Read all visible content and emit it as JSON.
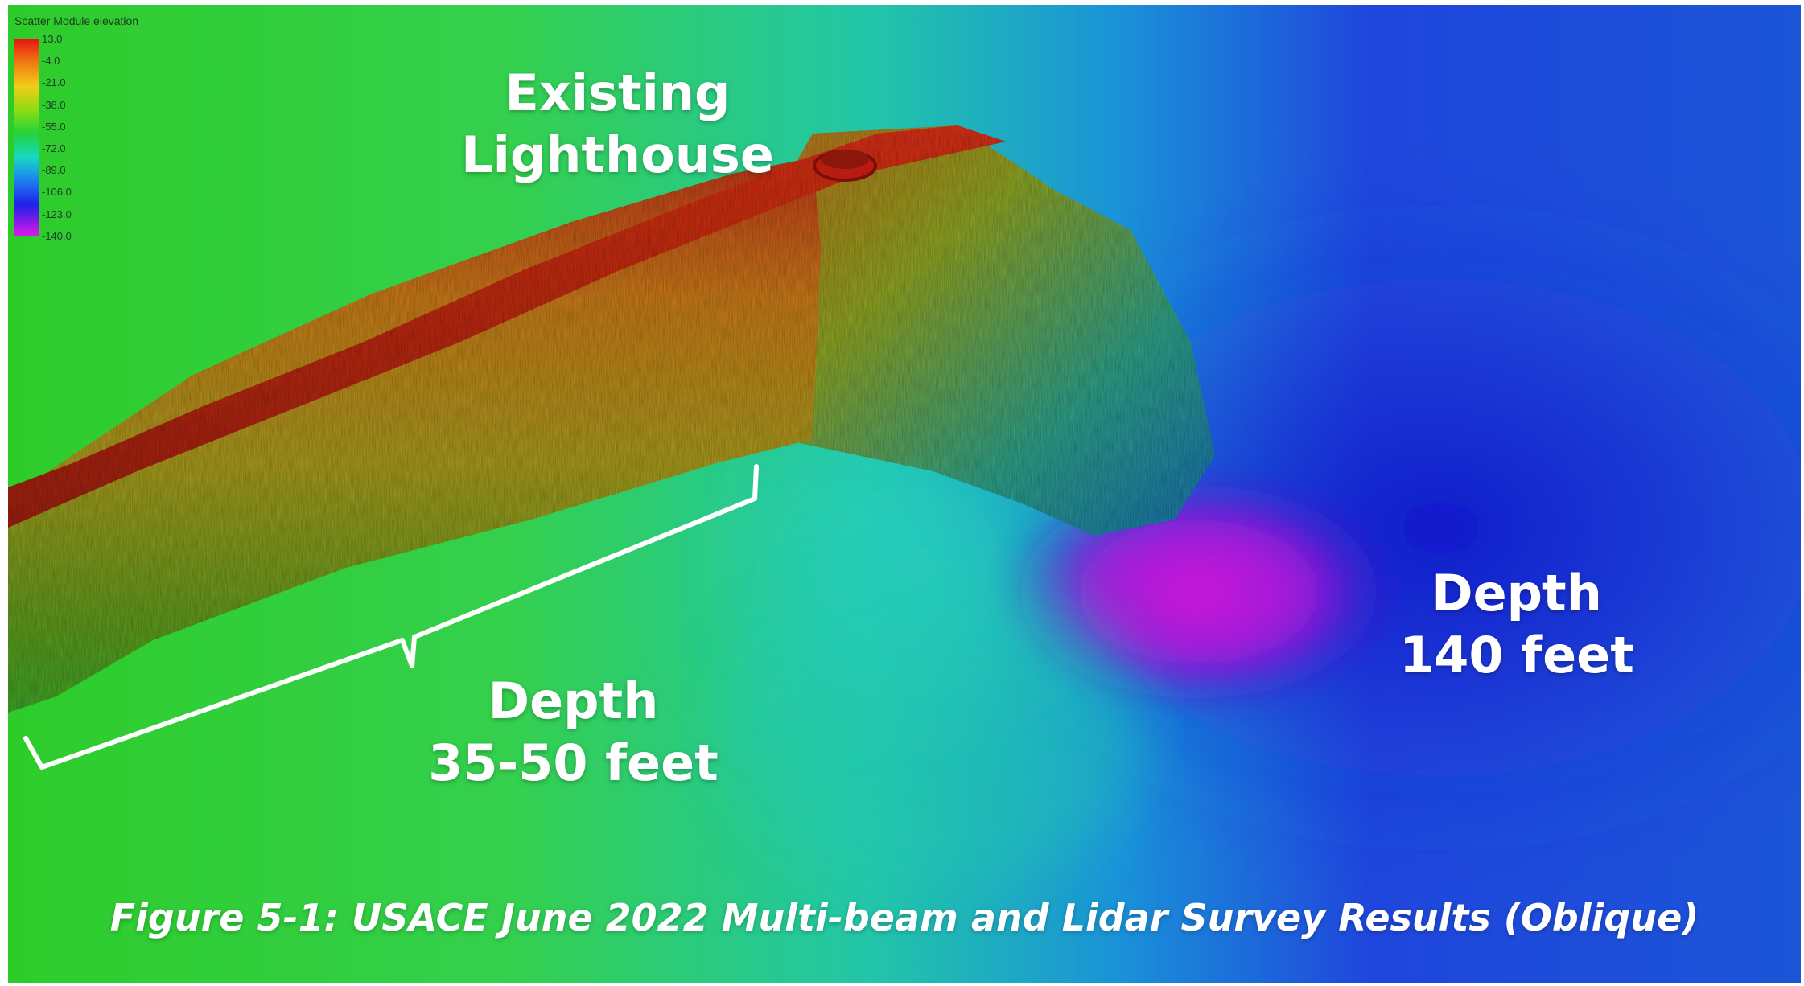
{
  "legend": {
    "title": "Scatter Module elevation",
    "ticks": [
      "13.0",
      "-4.0",
      "-21.0",
      "-38.0",
      "-55.0",
      "-72.0",
      "-89.0",
      "-106.0",
      "-123.0",
      "-140.0"
    ]
  },
  "labels": {
    "lighthouse": [
      "Existing",
      "Lighthouse"
    ],
    "depth_shallow": [
      "Depth",
      "35-50 feet"
    ],
    "depth_deep": [
      "Depth",
      "140 feet"
    ]
  },
  "caption": "Figure 5-1: USACE June 2022 Multi-beam and Lidar Survey Results (Oblique)",
  "colors": {
    "shallow_seafloor": "#3ad23a",
    "mid_seafloor": "#20c8b4",
    "deep_seafloor": "#1f35d8",
    "scour_hole": "#d21ad2",
    "breakwater_crest": "#c42a14",
    "text": "#ffffff"
  }
}
